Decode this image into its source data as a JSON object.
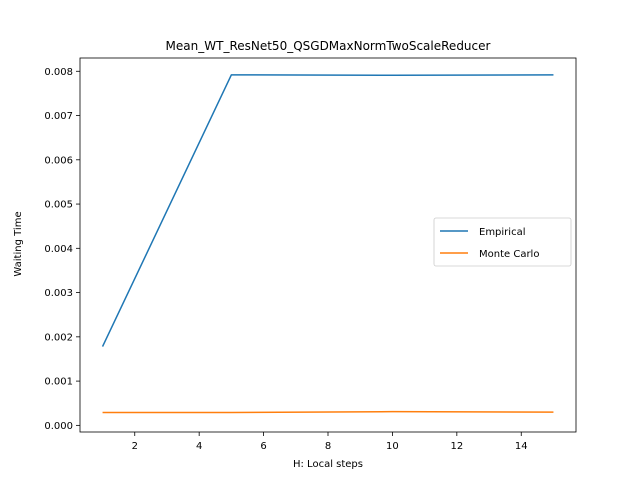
{
  "chart_data": {
    "type": "line",
    "title": "Mean_WT_ResNet50_QSGDMaxNormTwoScaleReducer",
    "xlabel": "H: Local steps",
    "ylabel": "Waiting Time",
    "xlim": [
      0.3,
      15.7
    ],
    "ylim": [
      -0.00015,
      0.0083
    ],
    "xticks": [
      2,
      4,
      6,
      8,
      10,
      12,
      14
    ],
    "yticks": [
      0.0,
      0.001,
      0.002,
      0.003,
      0.004,
      0.005,
      0.006,
      0.007,
      0.008
    ],
    "ytick_labels": [
      "0.000",
      "0.001",
      "0.002",
      "0.003",
      "0.004",
      "0.005",
      "0.006",
      "0.007",
      "0.008"
    ],
    "grid": false,
    "legend_position": "center-right",
    "series": [
      {
        "name": "Empirical",
        "color": "#1f77b4",
        "x": [
          1,
          5,
          10,
          15
        ],
        "y": [
          0.00178,
          0.00792,
          0.00791,
          0.00792
        ]
      },
      {
        "name": "Monte Carlo",
        "color": "#ff7f0e",
        "x": [
          1,
          5,
          10,
          15
        ],
        "y": [
          0.00029,
          0.00029,
          0.00031,
          0.0003
        ]
      }
    ]
  }
}
